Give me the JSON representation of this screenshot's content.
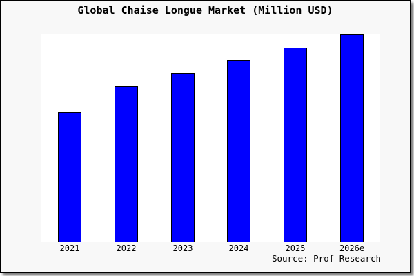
{
  "title": "Global Chaise Longue Market (Million USD)",
  "source_note": "Source: Prof Research",
  "colors": {
    "page_background": "#f8f8f8",
    "plot_background": "#ffffff",
    "bar_fill": "#0000ff",
    "bar_border": "#000000",
    "axis_line": "#000000",
    "frame_border": "#000000",
    "text": "#000000"
  },
  "chart_data": {
    "type": "bar",
    "title": "Global Chaise Longue Market (Million USD)",
    "xlabel": "",
    "ylabel": "",
    "categories": [
      "2021",
      "2022",
      "2023",
      "2024",
      "2025",
      "2026e"
    ],
    "values": [
      62.3,
      75.0,
      81.3,
      87.7,
      93.7,
      100.0
    ],
    "values_note": "No y-axis scale, ticks or data labels are shown in the chart; values are relative bar heights expressed as a percentage of the tallest (2026e) bar.",
    "ylim": [
      0,
      100
    ],
    "gridlines": false,
    "legend": false,
    "y_axis_visible": false,
    "x_tick_labels": [
      "2021",
      "2022",
      "2023",
      "2024",
      "2025",
      "2026e"
    ],
    "annotations": [
      "Source: Prof Research"
    ]
  }
}
